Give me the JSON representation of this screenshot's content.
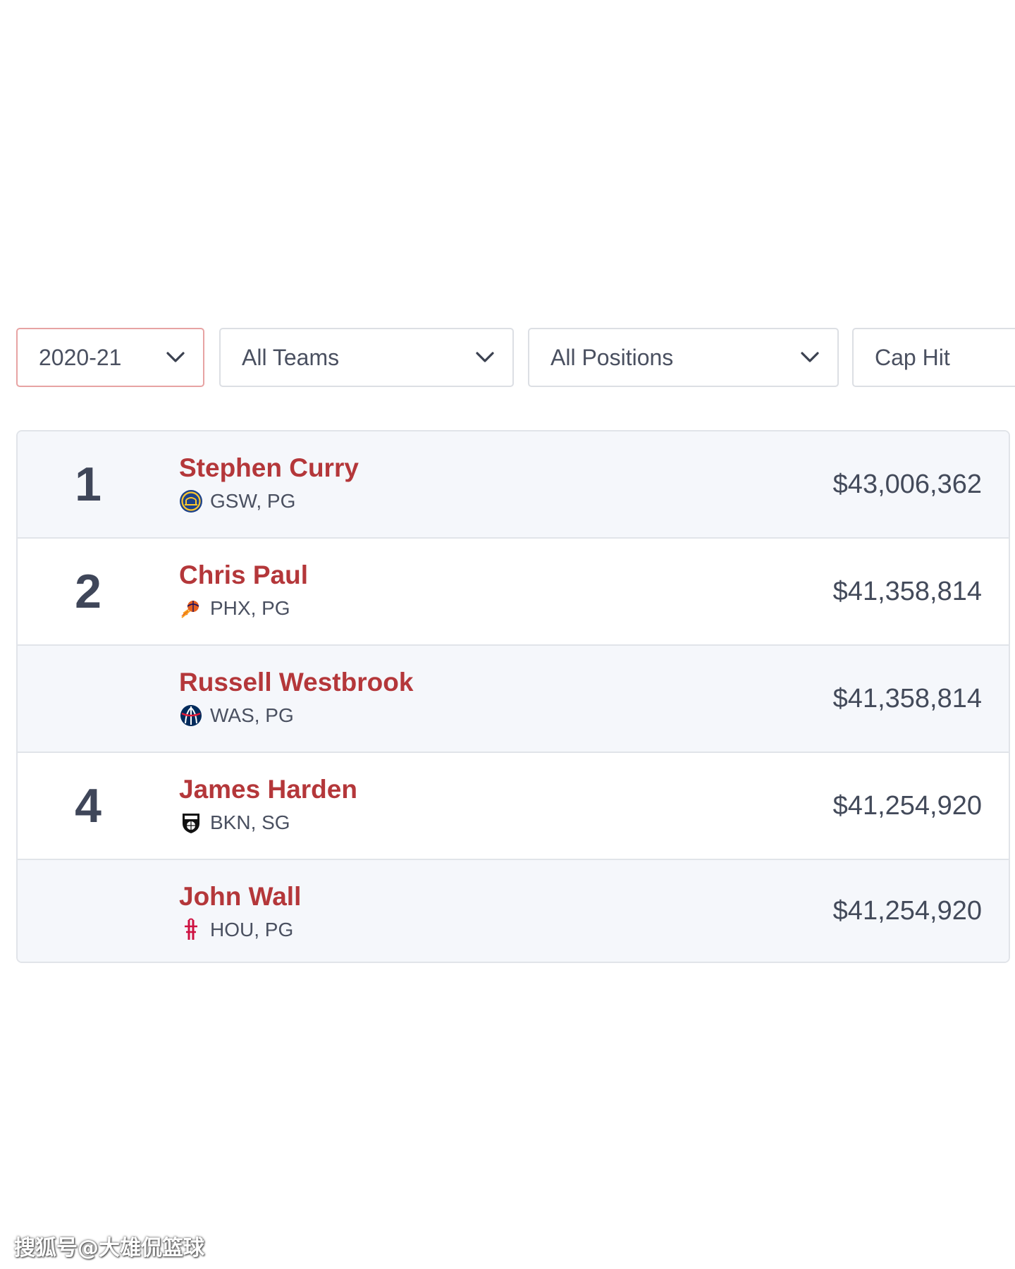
{
  "filters": {
    "season": "2020-21",
    "team": "All Teams",
    "position": "All Positions",
    "metric": "Cap Hit"
  },
  "rows": [
    {
      "rank": "1",
      "name": "Stephen Curry",
      "team_pos": "GSW, PG",
      "salary": "$43,006,362",
      "logo": "warriors-logo-icon"
    },
    {
      "rank": "2",
      "name": "Chris Paul",
      "team_pos": "PHX, PG",
      "salary": "$41,358,814",
      "logo": "suns-logo-icon"
    },
    {
      "rank": "",
      "name": "Russell Westbrook",
      "team_pos": "WAS, PG",
      "salary": "$41,358,814",
      "logo": "wizards-logo-icon"
    },
    {
      "rank": "4",
      "name": "James Harden",
      "team_pos": "BKN, SG",
      "salary": "$41,254,920",
      "logo": "nets-logo-icon"
    },
    {
      "rank": "",
      "name": "John Wall",
      "team_pos": "HOU, PG",
      "salary": "$41,254,920",
      "logo": "rockets-logo-icon"
    }
  ],
  "watermark": "搜狐号@大雄侃篮球",
  "colors": {
    "player_name": "#b4373a",
    "active_border": "#e7a3a3",
    "shaded_row": "#f5f7fb"
  }
}
